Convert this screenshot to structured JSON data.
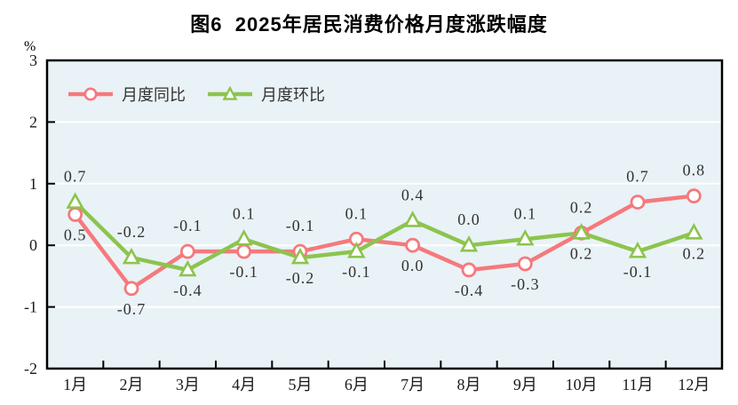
{
  "title": "图6  2025年居民消费价格月度涨跌幅度",
  "chart_data": {
    "type": "line",
    "title": "图6  2025年居民消费价格月度涨跌幅度",
    "xlabel": "",
    "ylabel": "%",
    "categories": [
      "1月",
      "2月",
      "3月",
      "4月",
      "5月",
      "6月",
      "7月",
      "8月",
      "9月",
      "10月",
      "11月",
      "12月"
    ],
    "series": [
      {
        "name": "月度同比",
        "marker": "circle",
        "color": "#F5797D",
        "values": [
          0.5,
          -0.7,
          -0.1,
          -0.1,
          -0.1,
          0.1,
          0.0,
          -0.4,
          -0.3,
          0.2,
          0.7,
          0.8
        ],
        "labels": [
          "0.5",
          "-0.7",
          "-0.1",
          "-0.1",
          "-0.1",
          "0.1",
          "0.0",
          "-0.4",
          "-0.3",
          "0.2",
          "0.7",
          "0.8"
        ]
      },
      {
        "name": "月度环比",
        "marker": "triangle",
        "color": "#8CC44E",
        "values": [
          0.7,
          -0.2,
          -0.4,
          0.1,
          -0.2,
          -0.1,
          0.4,
          0.0,
          0.1,
          0.2,
          -0.1,
          0.2
        ],
        "labels": [
          "0.7",
          "-0.2",
          "-0.4",
          "0.1",
          "-0.2",
          "-0.1",
          "0.4",
          "0.0",
          "0.1",
          "0.2",
          "-0.1",
          "0.2"
        ]
      }
    ],
    "ylim": [
      -2,
      3
    ],
    "yticks": [
      3,
      2,
      1,
      0,
      -1,
      -2
    ],
    "ytick_labels": [
      "3",
      "2",
      "1",
      "0",
      "-1",
      "-2"
    ],
    "grid": true,
    "legend_position": "top-left-inside",
    "colors": {
      "plot_background": "#E9F2F6",
      "gridline": "#FFFFFF",
      "axis": "#000000",
      "data_label": "#333333",
      "tick_label": "#1A1A1A"
    }
  }
}
